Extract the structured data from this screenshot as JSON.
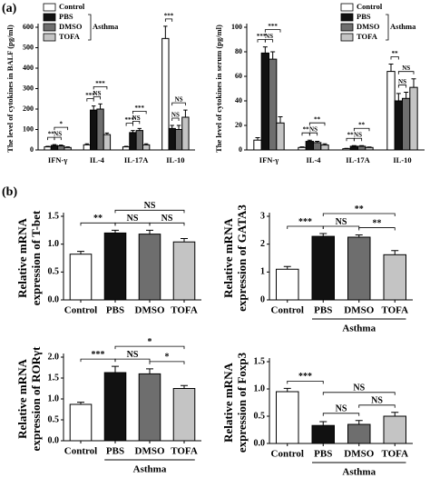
{
  "panel_labels": [
    "(a)",
    "(b)"
  ],
  "chart_data": [
    {
      "type": "grouped_bar",
      "ylabel": "The level of cytokines in BALF (pg/ml)",
      "categories": [
        "IFN-γ",
        "IL-4",
        "IL-17A",
        "IL-10"
      ],
      "series": [
        {
          "name": "Control",
          "color": "#ffffff",
          "values": [
            15,
            25,
            15,
            545
          ],
          "errors": [
            3,
            5,
            3,
            60
          ]
        },
        {
          "name": "PBS",
          "color": "#111111",
          "values": [
            22,
            195,
            85,
            105
          ],
          "errors": [
            4,
            20,
            10,
            15
          ]
        },
        {
          "name": "DMSO",
          "color": "#6e6e6e",
          "values": [
            20,
            200,
            95,
            100
          ],
          "errors": [
            4,
            25,
            10,
            20
          ]
        },
        {
          "name": "TOFA",
          "color": "#c4c4c4",
          "values": [
            12,
            75,
            25,
            160
          ],
          "errors": [
            3,
            8,
            5,
            35
          ]
        }
      ],
      "ylim": [
        0,
        600
      ],
      "yticks": [
        0,
        100,
        200,
        300,
        400,
        500,
        600
      ],
      "legend": "upper left",
      "legend_group": "Asthma",
      "brackets": [
        [
          "**",
          "NS",
          "*"
        ],
        [
          "***",
          "NS",
          "***"
        ],
        [
          "***",
          "NS",
          "***"
        ],
        [
          "***",
          "NS",
          "NS"
        ]
      ]
    },
    {
      "type": "grouped_bar",
      "ylabel": "The level of cytokines in serum (pg/ml)",
      "categories": [
        "IFN-γ",
        "IL-4",
        "IL-17A",
        "IL-10"
      ],
      "series": [
        {
          "name": "Control",
          "color": "#ffffff",
          "values": [
            8,
            2,
            1,
            64
          ],
          "errors": [
            2,
            0.5,
            0.3,
            6
          ]
        },
        {
          "name": "PBS",
          "color": "#111111",
          "values": [
            79,
            7,
            3,
            40
          ],
          "errors": [
            5,
            1,
            0.5,
            6
          ]
        },
        {
          "name": "DMSO",
          "color": "#6e6e6e",
          "values": [
            74,
            6,
            3,
            42
          ],
          "errors": [
            6,
            1,
            0.5,
            5
          ]
        },
        {
          "name": "TOFA",
          "color": "#c4c4c4",
          "values": [
            22,
            4,
            2,
            51
          ],
          "errors": [
            5,
            1,
            0.4,
            7
          ]
        }
      ],
      "ylim": [
        0,
        100
      ],
      "yticks": [
        0,
        20,
        40,
        60,
        80,
        100
      ],
      "legend": "upper right",
      "legend_group": "Asthma",
      "brackets": [
        [
          "***",
          "NS",
          "***"
        ],
        [
          "**",
          "NS",
          "**"
        ],
        [
          "**",
          "NS",
          "**"
        ],
        [
          "**",
          "NS",
          "NS"
        ]
      ]
    },
    {
      "type": "bar",
      "ylabel": [
        "Relative mRNA",
        "expression of T-bet"
      ],
      "categories": [
        "Control",
        "PBS",
        "DMSO",
        "TOFA"
      ],
      "values": [
        0.82,
        1.2,
        1.18,
        1.04
      ],
      "errors": [
        0.05,
        0.05,
        0.07,
        0.06
      ],
      "colors": [
        "#ffffff",
        "#111111",
        "#6e6e6e",
        "#c4c4c4"
      ],
      "ylim": [
        0,
        1.5
      ],
      "yticks": [
        {
          "value": 0,
          "label": "0.0"
        },
        {
          "value": 0.5,
          "label": "0.5"
        },
        {
          "value": 1,
          "label": "1.0"
        },
        {
          "value": 1.5,
          "label": "1.5"
        }
      ],
      "brackets": [
        "**",
        "NS",
        "NS",
        "NS"
      ]
    },
    {
      "type": "bar",
      "ylabel": [
        "Relative mRNA",
        "expression of GATA3"
      ],
      "categories": [
        "Control",
        "PBS",
        "DMSO",
        "TOFA"
      ],
      "values": [
        1.1,
        2.28,
        2.25,
        1.62
      ],
      "errors": [
        0.1,
        0.1,
        0.08,
        0.15
      ],
      "colors": [
        "#ffffff",
        "#111111",
        "#6e6e6e",
        "#c4c4c4"
      ],
      "ylim": [
        0,
        3
      ],
      "yticks": [
        0,
        1,
        2,
        3
      ],
      "group_label": "Asthma",
      "brackets": [
        "***",
        "NS",
        "**",
        "**"
      ]
    },
    {
      "type": "bar",
      "ylabel": [
        "Relative mRNA",
        "expression of RORγt"
      ],
      "categories": [
        "Control",
        "PBS",
        "DMSO",
        "TOFA"
      ],
      "values": [
        0.87,
        1.63,
        1.6,
        1.25
      ],
      "errors": [
        0.05,
        0.15,
        0.12,
        0.07
      ],
      "colors": [
        "#ffffff",
        "#111111",
        "#6e6e6e",
        "#c4c4c4"
      ],
      "ylim": [
        0,
        2
      ],
      "yticks": [
        {
          "value": 0,
          "label": "0.0"
        },
        {
          "value": 0.5,
          "label": "0.5"
        },
        {
          "value": 1,
          "label": "1.0"
        },
        {
          "value": 1.5,
          "label": "1.5"
        },
        {
          "value": 2,
          "label": "2.0"
        }
      ],
      "group_label": "Asthma",
      "brackets": [
        "***",
        "NS",
        "*",
        "*"
      ]
    },
    {
      "type": "bar",
      "ylabel": [
        "Relative mRNA",
        "expression of Foxp3"
      ],
      "categories": [
        "Control",
        "PBS",
        "DMSO",
        "TOFA"
      ],
      "values": [
        0.95,
        0.33,
        0.35,
        0.5
      ],
      "errors": [
        0.06,
        0.07,
        0.07,
        0.07
      ],
      "colors": [
        "#ffffff",
        "#111111",
        "#6e6e6e",
        "#c4c4c4"
      ],
      "ylim": [
        0,
        1.5
      ],
      "yticks": [
        {
          "value": 0,
          "label": "0.0"
        },
        {
          "value": 0.5,
          "label": "0.5"
        },
        {
          "value": 1,
          "label": "1.0"
        },
        {
          "value": 1.5,
          "label": "1.5"
        }
      ],
      "group_label": "Asthma",
      "brackets": [
        "***",
        "NS",
        "NS",
        "NS"
      ]
    }
  ]
}
